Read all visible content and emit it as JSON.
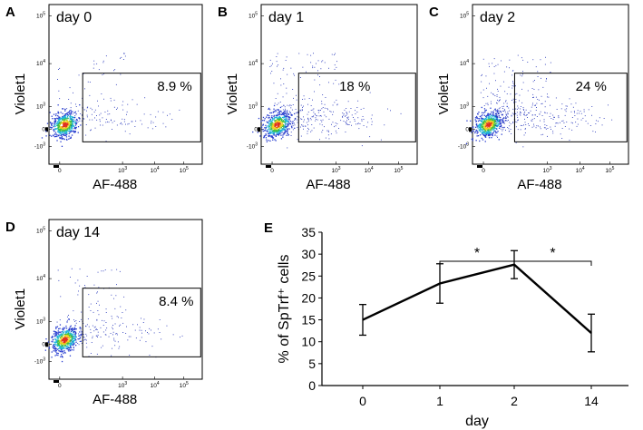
{
  "chart_data": [
    {
      "type": "scatter",
      "panel": "A",
      "label": "day 0",
      "xlabel": "AF-488",
      "ylabel": "Violet1",
      "gate_percent": "8.9 %",
      "x_ticks": [
        "0",
        "10^3",
        "10^4",
        "10^5"
      ],
      "y_ticks": [
        "-10^3",
        "0",
        "10^3",
        "10^4",
        "10^5"
      ],
      "spread": 0.8
    },
    {
      "type": "scatter",
      "panel": "B",
      "label": "day 1",
      "xlabel": "AF-488",
      "ylabel": "Violet1",
      "gate_percent": "18 %",
      "x_ticks": [
        "0",
        "10^3",
        "10^4",
        "10^5"
      ],
      "y_ticks": [
        "-10^3",
        "0",
        "10^3",
        "10^4",
        "10^5"
      ],
      "spread": 1.6
    },
    {
      "type": "scatter",
      "panel": "C",
      "label": "day 2",
      "xlabel": "AF-488",
      "ylabel": "Violet1",
      "gate_percent": "24 %",
      "x_ticks": [
        "0",
        "10^3",
        "10^4",
        "10^5"
      ],
      "y_ticks": [
        "-10^3",
        "0",
        "10^3",
        "10^4",
        "10^5"
      ],
      "spread": 2.0
    },
    {
      "type": "scatter",
      "panel": "D",
      "label": "day 14",
      "xlabel": "AF-488",
      "ylabel": "Violet1",
      "gate_percent": "8.4 %",
      "x_ticks": [
        "0",
        "10^3",
        "10^4",
        "10^5"
      ],
      "y_ticks": [
        "-10^3",
        "0",
        "10^3",
        "10^4",
        "10^5"
      ],
      "spread": 1.0
    },
    {
      "type": "line",
      "panel": "E",
      "categories": [
        "0",
        "1",
        "2",
        "14"
      ],
      "values": [
        15,
        23.3,
        27.6,
        12
      ],
      "errors": [
        3.5,
        4.5,
        3.2,
        4.3
      ],
      "xlabel": "day",
      "ylabel": "% of SpTrf⁺ cells",
      "ylim": [
        0,
        35
      ],
      "y_ticks": [
        0,
        5,
        10,
        15,
        20,
        25,
        30,
        35
      ],
      "significance": [
        {
          "from": "1",
          "to": "2",
          "label": "*"
        },
        {
          "from": "2",
          "to": "14",
          "label": "*"
        }
      ]
    }
  ]
}
